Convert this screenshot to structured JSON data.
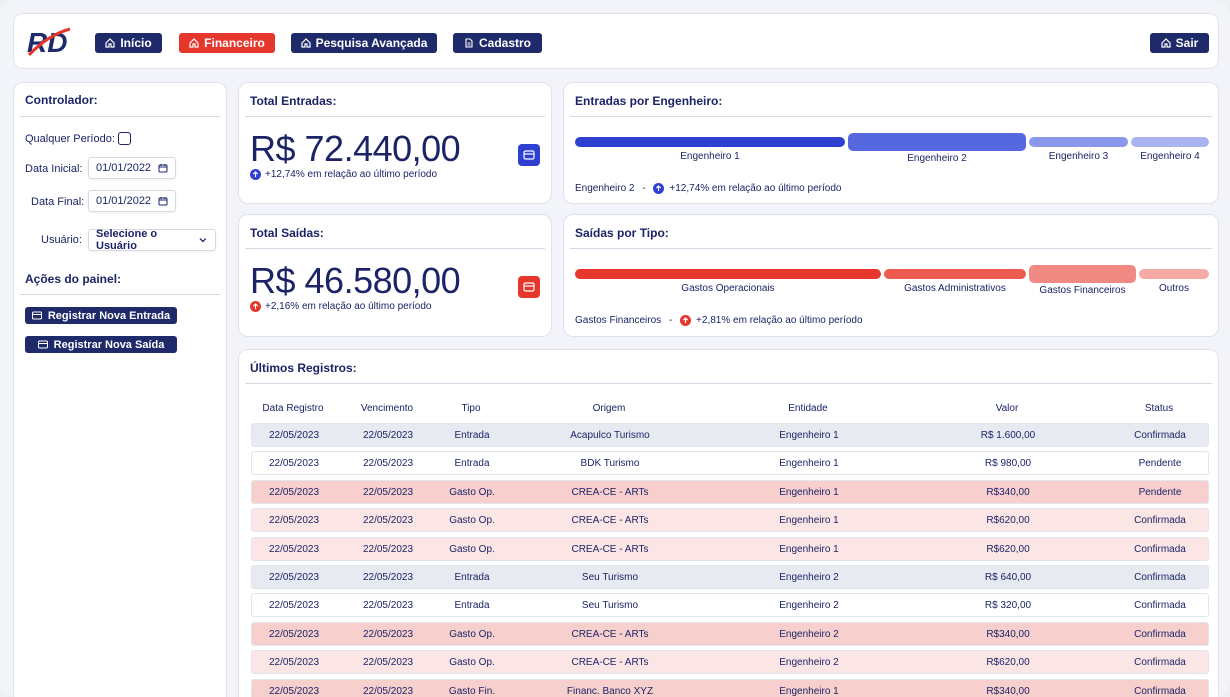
{
  "logo": {
    "text": "RD"
  },
  "nav": {
    "inicio": "Início",
    "financeiro": "Financeiro",
    "pesquisa": "Pesquisa Avançada",
    "cadastro": "Cadastro",
    "sair": "Sair"
  },
  "sidebar": {
    "title": "Controlador:",
    "any_period": "Qualquer Período:",
    "start_label": "Data Inicial:",
    "start_value": "01/01/2022",
    "end_label": "Data Final:",
    "end_value": "01/01/2022",
    "user_label": "Usuário:",
    "user_value": "Selecione o Usuário",
    "actions_title": "Ações do painel:",
    "btn_entrada": "Registrar Nova Entrada",
    "btn_saida": "Registrar Nova Saída"
  },
  "total_entradas": {
    "title": "Total Entradas:",
    "value": "R$ 72.440,00",
    "delta": "+12,74% em relação ao último período",
    "color": "#2f3fd1"
  },
  "total_saidas": {
    "title": "Total Saídas:",
    "value": "R$ 46.580,00",
    "delta": "+2,16% em relação ao último período",
    "color": "#e5372c"
  },
  "entradas_engenheiro": {
    "title": "Entradas por Engenheiro:",
    "bars": [
      {
        "label": "Engenheiro 1",
        "color": "#2f3fd1"
      },
      {
        "label": "Engenheiro 2",
        "color": "#5668e0"
      },
      {
        "label": "Engenheiro 3",
        "color": "#8a97ea"
      },
      {
        "label": "Engenheiro 4",
        "color": "#aab3f0"
      }
    ],
    "summary_name": "Engenheiro 2",
    "summary_delta": "+12,74% em relação ao último período"
  },
  "saidas_tipo": {
    "title": "Saídas por Tipo:",
    "bars": [
      {
        "label": "Gastos Operacionais",
        "color": "#e5372c"
      },
      {
        "label": "Gastos Administrativos",
        "color": "#ec5a50"
      },
      {
        "label": "Gastos Financeiros",
        "color": "#f08a83"
      },
      {
        "label": "Outros",
        "color": "#f5aaa5"
      }
    ],
    "summary_name": "Gastos Financeiros",
    "summary_delta": "+2,81% em relação ao último período"
  },
  "table": {
    "title": "Últimos Registros:",
    "headers": [
      "Data Registro",
      "Vencimento",
      "Tipo",
      "Origem",
      "Entidade",
      "Valor",
      "Status"
    ],
    "rows": [
      [
        "22/05/2023",
        "22/05/2023",
        "Entrada",
        "Acapulco Turismo",
        "Engenheiro 1",
        "R$ 1.600,00",
        "Confirmada"
      ],
      [
        "22/05/2023",
        "22/05/2023",
        "Entrada",
        "BDK Turismo",
        "Engenheiro 1",
        "R$ 980,00",
        "Pendente"
      ],
      [
        "22/05/2023",
        "22/05/2023",
        "Gasto Op.",
        "CREA-CE - ARTs",
        "Engenheiro 1",
        "R$340,00",
        "Pendente"
      ],
      [
        "22/05/2023",
        "22/05/2023",
        "Gasto Op.",
        "CREA-CE - ARTs",
        "Engenheiro 1",
        "R$620,00",
        "Confirmada"
      ],
      [
        "22/05/2023",
        "22/05/2023",
        "Gasto Op.",
        "CREA-CE - ARTs",
        "Engenheiro 1",
        "R$620,00",
        "Confirmada"
      ],
      [
        "22/05/2023",
        "22/05/2023",
        "Entrada",
        "Seu Turismo",
        "Engenheiro 2",
        "R$ 640,00",
        "Confirmada"
      ],
      [
        "22/05/2023",
        "22/05/2023",
        "Entrada",
        "Seu Turismo",
        "Engenheiro 2",
        "R$ 320,00",
        "Confirmada"
      ],
      [
        "22/05/2023",
        "22/05/2023",
        "Gasto Op.",
        "CREA-CE - ARTs",
        "Engenheiro 2",
        "R$340,00",
        "Confirmada"
      ],
      [
        "22/05/2023",
        "22/05/2023",
        "Gasto Op.",
        "CREA-CE - ARTs",
        "Engenheiro 2",
        "R$620,00",
        "Confirmada"
      ],
      [
        "22/05/2023",
        "22/05/2023",
        "Gasto Fin.",
        "Financ. Banco XYZ",
        "Engenheiro 1",
        "R$340,00",
        "Confirmada"
      ]
    ]
  }
}
